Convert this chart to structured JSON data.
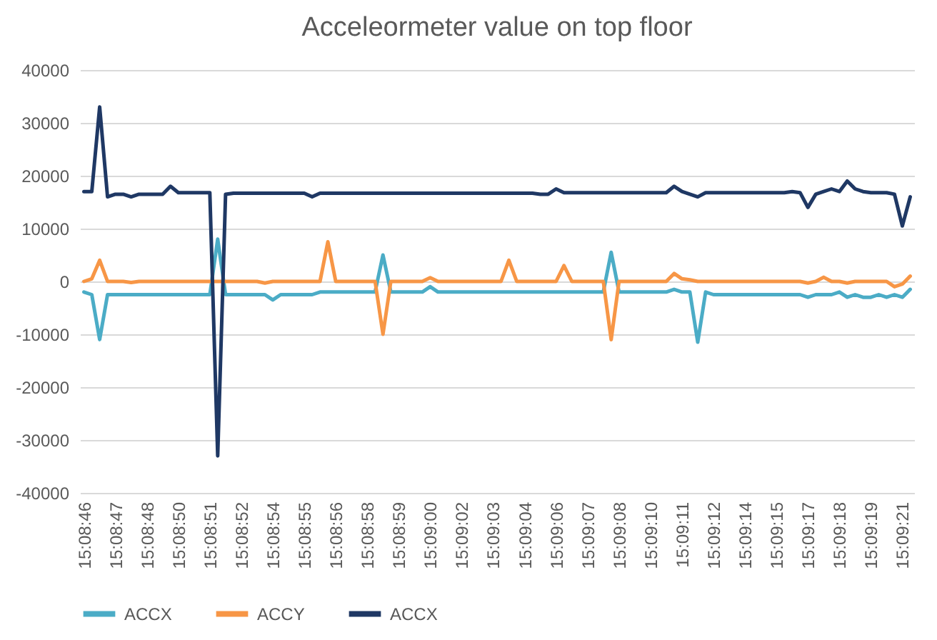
{
  "chart_data": {
    "type": "line",
    "title": "Acceleormeter value on top floor",
    "categories": [
      "15:08:46",
      null,
      null,
      null,
      "15:08:47",
      null,
      null,
      null,
      "15:08:48",
      null,
      null,
      null,
      "15:08:50",
      null,
      null,
      null,
      "15:08:51",
      null,
      null,
      null,
      "15:08:52",
      null,
      null,
      null,
      "15:08:54",
      null,
      null,
      null,
      "15:08:55",
      null,
      null,
      null,
      "15:08:56",
      null,
      null,
      null,
      "15:08:58",
      null,
      null,
      null,
      "15:08:59",
      null,
      null,
      null,
      "15:09:00",
      null,
      null,
      null,
      "15:09:02",
      null,
      null,
      null,
      "15:09:03",
      null,
      null,
      null,
      "15:09:04",
      null,
      null,
      null,
      "15:09:06",
      null,
      null,
      null,
      "15:09:07",
      null,
      null,
      null,
      "15:09:08",
      null,
      null,
      null,
      "15:09:10",
      null,
      null,
      null,
      "15:09:11",
      null,
      null,
      null,
      "15:09:12",
      null,
      null,
      null,
      "15:09:14",
      null,
      null,
      null,
      "15:09:15",
      null,
      null,
      null,
      "15:09:17",
      null,
      null,
      null,
      "15:09:18",
      null,
      null,
      null,
      "15:09:19",
      null,
      null,
      null,
      "15:09:21",
      null
    ],
    "series": [
      {
        "name": "ACCX",
        "color": "#4bacc6",
        "values": [
          -2000,
          -2500,
          -11000,
          -2500,
          -2500,
          -2500,
          -2500,
          -2500,
          -2500,
          -2500,
          -2500,
          -2500,
          -2500,
          -2500,
          -2500,
          -2500,
          -2500,
          8000,
          -2500,
          -2500,
          -2500,
          -2500,
          -2500,
          -2500,
          -3500,
          -2500,
          -2500,
          -2500,
          -2500,
          -2500,
          -2000,
          -2000,
          -2000,
          -2000,
          -2000,
          -2000,
          -2000,
          -2000,
          5000,
          -2000,
          -2000,
          -2000,
          -2000,
          -2000,
          -1000,
          -2000,
          -2000,
          -2000,
          -2000,
          -2000,
          -2000,
          -2000,
          -2000,
          -2000,
          -2000,
          -2000,
          -2000,
          -2000,
          -2000,
          -2000,
          -2000,
          -2000,
          -2000,
          -2000,
          -2000,
          -2000,
          -2000,
          5500,
          -2000,
          -2000,
          -2000,
          -2000,
          -2000,
          -2000,
          -2000,
          -1500,
          -2000,
          -2000,
          -11500,
          -2000,
          -2500,
          -2500,
          -2500,
          -2500,
          -2500,
          -2500,
          -2500,
          -2500,
          -2500,
          -2500,
          -2500,
          -2500,
          -3000,
          -2500,
          -2500,
          -2500,
          -2000,
          -3000,
          -2500,
          -3000,
          -3000,
          -2500,
          -3000,
          -2500,
          -3000,
          -1500
        ]
      },
      {
        "name": "ACCY",
        "color": "#f79646",
        "values": [
          0,
          500,
          4000,
          0,
          0,
          0,
          -200,
          0,
          0,
          0,
          0,
          0,
          0,
          0,
          0,
          0,
          0,
          0,
          0,
          0,
          0,
          0,
          0,
          -300,
          0,
          0,
          0,
          0,
          0,
          0,
          0,
          7500,
          0,
          0,
          0,
          0,
          0,
          0,
          -10000,
          0,
          0,
          0,
          0,
          0,
          700,
          0,
          0,
          0,
          0,
          0,
          0,
          0,
          0,
          0,
          4000,
          0,
          0,
          0,
          0,
          0,
          0,
          3000,
          0,
          0,
          0,
          0,
          0,
          -11000,
          0,
          0,
          0,
          0,
          0,
          0,
          0,
          1500,
          500,
          300,
          0,
          0,
          0,
          0,
          0,
          0,
          0,
          0,
          0,
          0,
          0,
          0,
          0,
          0,
          -300,
          0,
          800,
          0,
          0,
          -300,
          0,
          0,
          0,
          0,
          0,
          -1000,
          -500,
          1000
        ]
      },
      {
        "name": "ACCX",
        "color": "#1f3864",
        "values": [
          17000,
          17000,
          33000,
          16000,
          16500,
          16500,
          16000,
          16500,
          16500,
          16500,
          16500,
          18000,
          16800,
          16800,
          16800,
          16800,
          16800,
          -33000,
          16500,
          16700,
          16700,
          16700,
          16700,
          16700,
          16700,
          16700,
          16700,
          16700,
          16700,
          16000,
          16700,
          16700,
          16700,
          16700,
          16700,
          16700,
          16700,
          16700,
          16700,
          16700,
          16700,
          16700,
          16700,
          16700,
          16700,
          16700,
          16700,
          16700,
          16700,
          16700,
          16700,
          16700,
          16700,
          16700,
          16700,
          16700,
          16700,
          16700,
          16500,
          16500,
          17500,
          16800,
          16800,
          16800,
          16800,
          16800,
          16800,
          16800,
          16800,
          16800,
          16800,
          16800,
          16800,
          16800,
          16800,
          18000,
          17000,
          16500,
          16000,
          16800,
          16800,
          16800,
          16800,
          16800,
          16800,
          16800,
          16800,
          16800,
          16800,
          16800,
          17000,
          16800,
          14000,
          16500,
          17000,
          17500,
          17000,
          19000,
          17500,
          17000,
          16800,
          16800,
          16800,
          16500,
          10500,
          16000
        ]
      }
    ],
    "ylim": [
      -40000,
      40000
    ],
    "yticks": [
      -40000,
      -30000,
      -20000,
      -10000,
      0,
      10000,
      20000,
      30000,
      40000
    ],
    "grid": "y",
    "legend": "bottom"
  }
}
